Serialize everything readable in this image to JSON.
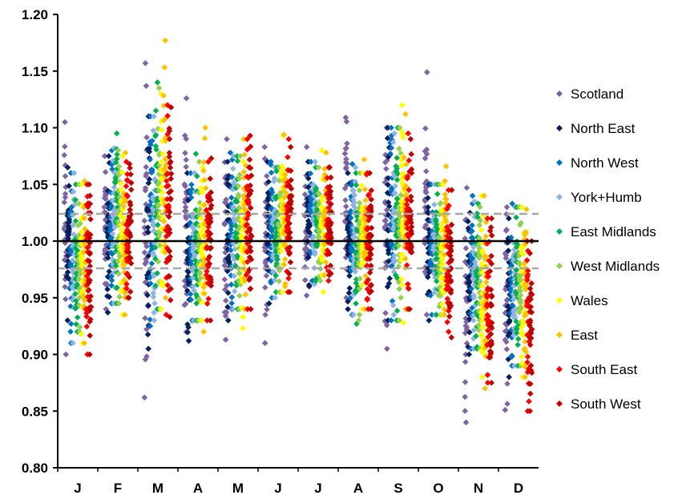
{
  "chart_data": {
    "type": "scatter",
    "title": "",
    "xlabel": "",
    "ylabel": "",
    "categories": [
      "J",
      "F",
      "M",
      "A",
      "M",
      "J",
      "J",
      "A",
      "S",
      "O",
      "N",
      "D"
    ],
    "ylim": [
      0.8,
      1.2
    ],
    "yticks": [
      "0.80",
      "0.85",
      "0.90",
      "0.95",
      "1.00",
      "1.05",
      "1.10",
      "1.15",
      "1.20"
    ],
    "grid": false,
    "legend_position": "right",
    "reference_lines": [
      {
        "y": 1.0,
        "style": "solid",
        "color": "#000000"
      },
      {
        "y": 1.024,
        "style": "dashed",
        "color": "#a6a6a6"
      },
      {
        "y": 0.976,
        "style": "dashed",
        "color": "#a6a6a6"
      }
    ],
    "series": [
      {
        "name": "Scotland",
        "color": "#8064a2",
        "ranges": [
          [
            0.9,
            1.105
          ],
          [
            0.94,
            1.075
          ],
          [
            0.862,
            1.157
          ],
          [
            0.92,
            1.126
          ],
          [
            0.913,
            1.09
          ],
          [
            0.91,
            1.083
          ],
          [
            0.952,
            1.083
          ],
          [
            0.95,
            1.109
          ],
          [
            0.905,
            1.1
          ],
          [
            0.935,
            1.149
          ],
          [
            0.84,
            1.047
          ],
          [
            0.851,
            1.03
          ]
        ]
      },
      {
        "name": "North East",
        "color": "#002060",
        "ranges": [
          [
            0.93,
            1.065
          ],
          [
            0.937,
            1.075
          ],
          [
            0.905,
            1.11
          ],
          [
            0.912,
            1.06
          ],
          [
            0.93,
            1.07
          ],
          [
            0.945,
            1.07
          ],
          [
            0.96,
            1.07
          ],
          [
            0.94,
            1.06
          ],
          [
            0.93,
            1.1
          ],
          [
            0.93,
            1.05
          ],
          [
            0.9,
            1.025
          ],
          [
            0.88,
            1.02
          ]
        ]
      },
      {
        "name": "North West",
        "color": "#0070c0",
        "ranges": [
          [
            0.91,
            1.06
          ],
          [
            0.945,
            1.08
          ],
          [
            0.925,
            1.11
          ],
          [
            0.93,
            1.06
          ],
          [
            0.94,
            1.078
          ],
          [
            0.95,
            1.07
          ],
          [
            0.965,
            1.07
          ],
          [
            0.935,
            1.068
          ],
          [
            0.93,
            1.1
          ],
          [
            0.935,
            1.05
          ],
          [
            0.905,
            1.04
          ],
          [
            0.89,
            1.033
          ]
        ]
      },
      {
        "name": "York+Humb",
        "color": "#8db4e2",
        "ranges": [
          [
            0.91,
            1.06
          ],
          [
            0.945,
            1.082
          ],
          [
            0.93,
            1.11
          ],
          [
            0.93,
            1.06
          ],
          [
            0.94,
            1.075
          ],
          [
            0.95,
            1.065
          ],
          [
            0.962,
            1.07
          ],
          [
            0.935,
            1.065
          ],
          [
            0.935,
            1.095
          ],
          [
            0.935,
            1.05
          ],
          [
            0.905,
            1.035
          ],
          [
            0.89,
            1.03
          ]
        ]
      },
      {
        "name": "East Midlands",
        "color": "#00b050",
        "ranges": [
          [
            0.92,
            1.05
          ],
          [
            0.945,
            1.095
          ],
          [
            0.94,
            1.14
          ],
          [
            0.93,
            1.077
          ],
          [
            0.94,
            1.075
          ],
          [
            0.955,
            1.065
          ],
          [
            0.965,
            1.065
          ],
          [
            0.927,
            1.06
          ],
          [
            0.93,
            1.1
          ],
          [
            0.935,
            1.05
          ],
          [
            0.905,
            1.033
          ],
          [
            0.89,
            1.03
          ]
        ]
      },
      {
        "name": "West Midlands",
        "color": "#92d050",
        "ranges": [
          [
            0.92,
            1.05
          ],
          [
            0.945,
            1.08
          ],
          [
            0.94,
            1.135
          ],
          [
            0.93,
            1.07
          ],
          [
            0.94,
            1.075
          ],
          [
            0.955,
            1.065
          ],
          [
            0.965,
            1.065
          ],
          [
            0.93,
            1.06
          ],
          [
            0.93,
            1.1
          ],
          [
            0.935,
            1.05
          ],
          [
            0.905,
            1.03
          ],
          [
            0.89,
            1.03
          ]
        ]
      },
      {
        "name": "Wales",
        "color": "#ffff00",
        "ranges": [
          [
            0.91,
            1.05
          ],
          [
            0.935,
            1.075
          ],
          [
            0.94,
            1.13
          ],
          [
            0.93,
            1.065
          ],
          [
            0.923,
            1.07
          ],
          [
            0.955,
            1.093
          ],
          [
            0.955,
            1.08
          ],
          [
            0.94,
            1.06
          ],
          [
            0.928,
            1.12
          ],
          [
            0.935,
            1.05
          ],
          [
            0.88,
            1.04
          ],
          [
            0.88,
            1.03
          ]
        ]
      },
      {
        "name": "East",
        "color": "#ffc000",
        "ranges": [
          [
            0.91,
            1.053
          ],
          [
            0.935,
            1.078
          ],
          [
            0.95,
            1.177
          ],
          [
            0.92,
            1.1
          ],
          [
            0.94,
            1.09
          ],
          [
            0.96,
            1.094
          ],
          [
            0.97,
            1.078
          ],
          [
            0.94,
            1.072
          ],
          [
            0.94,
            1.112
          ],
          [
            0.935,
            1.066
          ],
          [
            0.87,
            1.04
          ],
          [
            0.88,
            1.028
          ]
        ]
      },
      {
        "name": "South East",
        "color": "#ff0000",
        "ranges": [
          [
            0.9,
            1.05
          ],
          [
            0.95,
            1.07
          ],
          [
            0.935,
            1.12
          ],
          [
            0.93,
            1.07
          ],
          [
            0.94,
            1.09
          ],
          [
            0.955,
            1.09
          ],
          [
            0.965,
            1.065
          ],
          [
            0.94,
            1.06
          ],
          [
            0.94,
            1.095
          ],
          [
            0.92,
            1.045
          ],
          [
            0.875,
            1.02
          ],
          [
            0.85,
            1.0
          ]
        ]
      },
      {
        "name": "South West",
        "color": "#c00000",
        "ranges": [
          [
            0.9,
            1.05
          ],
          [
            0.95,
            1.068
          ],
          [
            0.933,
            1.118
          ],
          [
            0.93,
            1.073
          ],
          [
            0.94,
            1.093
          ],
          [
            0.955,
            1.083
          ],
          [
            0.97,
            1.065
          ],
          [
            0.94,
            1.06
          ],
          [
            0.94,
            1.09
          ],
          [
            0.915,
            1.045
          ],
          [
            0.875,
            1.02
          ],
          [
            0.85,
            1.0
          ]
        ]
      }
    ]
  }
}
